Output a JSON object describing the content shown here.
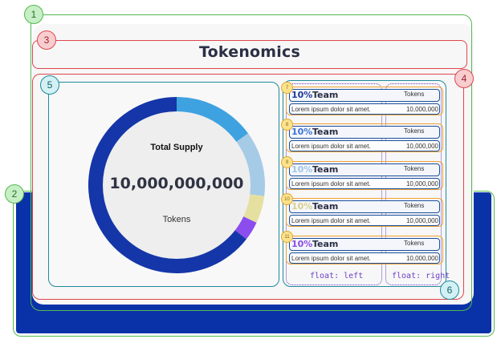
{
  "title": "Tokenomics",
  "supply": {
    "label": "Total Supply",
    "value": "10,000,000,000",
    "unit": "Tokens"
  },
  "chart_data": {
    "type": "pie",
    "series": [
      {
        "value": 15,
        "color": "#3ea2e0"
      },
      {
        "value": 12,
        "color": "#a6cbe6"
      },
      {
        "value": 5,
        "color": "#e6e0a0"
      },
      {
        "value": 3.5,
        "color": "#8b4ded"
      },
      {
        "value": 64.5,
        "color": "#1436a8"
      }
    ]
  },
  "allocations": [
    {
      "badge": "7",
      "percent": "10%",
      "name": "Team",
      "unit": "Tokens",
      "description": "Lorem ipsum dolor sit amet.",
      "amount": "10,000,000",
      "color": "#1e3a9a"
    },
    {
      "badge": "8",
      "percent": "10%",
      "name": "Team",
      "unit": "Tokens",
      "description": "Lorem ipsum dolor sit amet.",
      "amount": "10,000,000",
      "color": "#3b74d8"
    },
    {
      "badge": "9",
      "percent": "10%",
      "name": "Team",
      "unit": "Tokens",
      "description": "Lorem ipsum dolor sit amet.",
      "amount": "10,000,000",
      "color": "#9fc6e6"
    },
    {
      "badge": "10",
      "percent": "10%",
      "name": "Team",
      "unit": "Tokens",
      "description": "Lorem ipsum dolor sit amet.",
      "amount": "10,000,000",
      "color": "#d8cf8a"
    },
    {
      "badge": "11",
      "percent": "10%",
      "name": "Team",
      "unit": "Tokens",
      "description": "Lorem ipsum dolor sit amet.",
      "amount": "10,000,000",
      "color": "#8a4de6"
    }
  ],
  "notes": {
    "float_left": "float: left",
    "float_right": "float: right"
  },
  "callouts": {
    "c1": "1",
    "c2": "2",
    "c3": "3",
    "c4": "4",
    "c5": "5",
    "c6": "6"
  }
}
